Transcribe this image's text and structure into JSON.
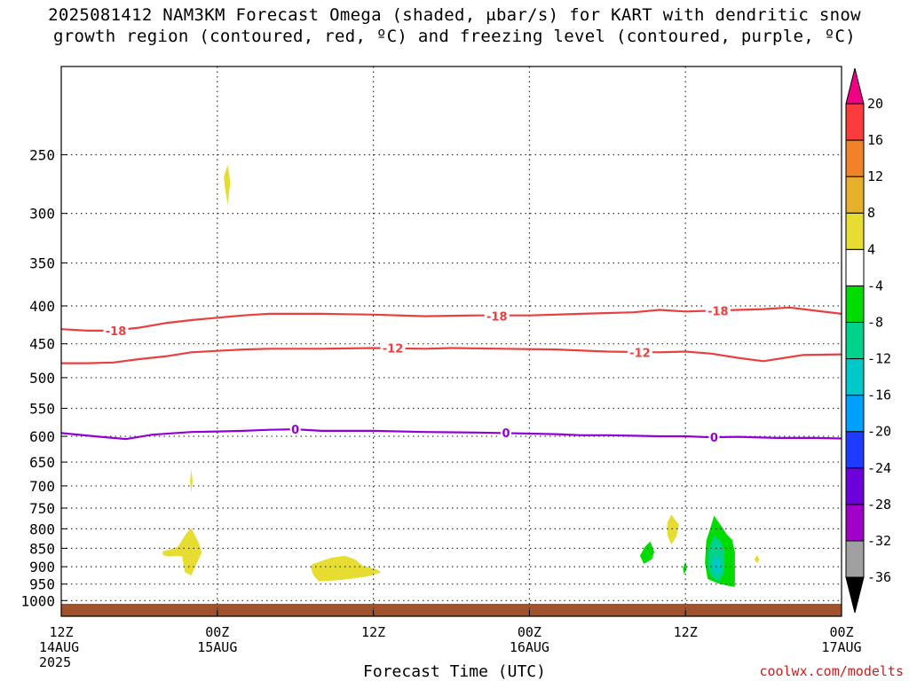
{
  "title_line1": "2025081412 NAM3KM Forecast Omega (shaded, μbar/s) for KART with dendritic snow",
  "title_line2": "growth region (contoured, red, ºC) and freezing level (contoured, purple, ºC)",
  "xlabel": "Forecast Time (UTC)",
  "credit": "coolwx.com/modelts",
  "chart_data": {
    "type": "heatmap",
    "y_scale": "log-pressure",
    "ylim": [
      1050,
      190
    ],
    "xlim": [
      0,
      60
    ],
    "grid": true,
    "y_ticks": [
      250,
      300,
      350,
      400,
      450,
      500,
      550,
      600,
      650,
      700,
      750,
      800,
      850,
      900,
      950,
      1000
    ],
    "x_ticks": [
      {
        "x": 0,
        "lines": [
          "12Z",
          "14AUG",
          "2025"
        ]
      },
      {
        "x": 12,
        "lines": [
          "00Z",
          "15AUG"
        ]
      },
      {
        "x": 24,
        "lines": [
          "12Z"
        ]
      },
      {
        "x": 36,
        "lines": [
          "00Z",
          "16AUG"
        ]
      },
      {
        "x": 48,
        "lines": [
          "12Z"
        ]
      },
      {
        "x": 60,
        "lines": [
          "00Z",
          "17AUG"
        ]
      }
    ],
    "surface": {
      "pressure": 1010,
      "color": "#a0522d"
    },
    "colorbar": {
      "levels": [
        -36,
        -32,
        -28,
        -24,
        -20,
        -16,
        -12,
        -8,
        -4,
        4,
        8,
        12,
        16,
        20
      ],
      "colors": [
        "#000000",
        "#a0a0a0",
        "#a000c8",
        "#6e00dc",
        "#1e3cff",
        "#00a0ff",
        "#00c8c8",
        "#00d28c",
        "#00dc00",
        "#ffffff",
        "#e6dc32",
        "#e6af2d",
        "#f08228",
        "#fa3c3c",
        "#f00082"
      ]
    },
    "contours": [
      {
        "name": "-18",
        "color": "#e84040",
        "points": [
          [
            0,
            430
          ],
          [
            2,
            432
          ],
          [
            4,
            432
          ],
          [
            6,
            428
          ],
          [
            8,
            422
          ],
          [
            10,
            418
          ],
          [
            12,
            415
          ],
          [
            14,
            412
          ],
          [
            16,
            410
          ],
          [
            20,
            410
          ],
          [
            24,
            411
          ],
          [
            28,
            413
          ],
          [
            32,
            412
          ],
          [
            36,
            412
          ],
          [
            40,
            410
          ],
          [
            44,
            408
          ],
          [
            46,
            405
          ],
          [
            48,
            407
          ],
          [
            50,
            406
          ],
          [
            52,
            405
          ],
          [
            54,
            404
          ],
          [
            56,
            402
          ],
          [
            58,
            406
          ],
          [
            60,
            410
          ]
        ],
        "labels": [
          [
            4.2,
            432
          ],
          [
            33.5,
            413
          ],
          [
            50.5,
            406
          ]
        ]
      },
      {
        "name": "-12",
        "color": "#e84040",
        "points": [
          [
            0,
            478
          ],
          [
            2,
            478
          ],
          [
            4,
            477
          ],
          [
            6,
            472
          ],
          [
            8,
            468
          ],
          [
            10,
            462
          ],
          [
            12,
            460
          ],
          [
            14,
            458
          ],
          [
            16,
            457
          ],
          [
            20,
            457
          ],
          [
            24,
            456
          ],
          [
            28,
            457
          ],
          [
            30,
            456
          ],
          [
            34,
            457
          ],
          [
            38,
            458
          ],
          [
            42,
            461
          ],
          [
            46,
            462
          ],
          [
            48,
            461
          ],
          [
            50,
            464
          ],
          [
            52,
            470
          ],
          [
            54,
            475
          ],
          [
            55,
            472
          ],
          [
            57,
            466
          ],
          [
            60,
            465
          ]
        ],
        "labels": [
          [
            25.5,
            456
          ],
          [
            44.5,
            462
          ]
        ]
      },
      {
        "name": "0",
        "color": "#9400d3",
        "points": [
          [
            0,
            594
          ],
          [
            3,
            601
          ],
          [
            5,
            605
          ],
          [
            7,
            597
          ],
          [
            10,
            592
          ],
          [
            12,
            591
          ],
          [
            14,
            590
          ],
          [
            16,
            588
          ],
          [
            18,
            587
          ],
          [
            20,
            590
          ],
          [
            24,
            590
          ],
          [
            28,
            592
          ],
          [
            32,
            593
          ],
          [
            36,
            595
          ],
          [
            38,
            596
          ],
          [
            40,
            598
          ],
          [
            42,
            598
          ],
          [
            44,
            599
          ],
          [
            46,
            600
          ],
          [
            48,
            600
          ],
          [
            50,
            602
          ],
          [
            52,
            601
          ],
          [
            55,
            603
          ],
          [
            58,
            603
          ],
          [
            60,
            604
          ]
        ],
        "labels": [
          [
            18,
            587
          ],
          [
            34.2,
            593
          ],
          [
            50.2,
            602
          ]
        ]
      }
    ],
    "shaded_regions": [
      {
        "value": 6,
        "points": [
          [
            12.8,
            258
          ],
          [
            13.0,
            272
          ],
          [
            12.8,
            292
          ],
          [
            12.6,
            278
          ],
          [
            12.5,
            268
          ]
        ]
      },
      {
        "value": 6,
        "points": [
          [
            10.0,
            665
          ],
          [
            10.1,
            690
          ],
          [
            10.0,
            715
          ],
          [
            9.9,
            690
          ]
        ]
      },
      {
        "value": 6,
        "points": [
          [
            10.0,
            798
          ],
          [
            10.6,
            838
          ],
          [
            10.8,
            862
          ],
          [
            10.4,
            892
          ],
          [
            10.0,
            925
          ],
          [
            9.5,
            915
          ],
          [
            9.3,
            872
          ],
          [
            8.9,
            870
          ],
          [
            8.3,
            872
          ],
          [
            7.8,
            868
          ],
          [
            7.8,
            858
          ],
          [
            8.5,
            852
          ],
          [
            9.0,
            845
          ],
          [
            9.6,
            812
          ]
        ]
      },
      {
        "value": 6,
        "points": [
          [
            19.3,
            893
          ],
          [
            20.8,
            875
          ],
          [
            21.8,
            870
          ],
          [
            22.6,
            880
          ],
          [
            23.2,
            898
          ],
          [
            24.2,
            906
          ],
          [
            24.6,
            916
          ],
          [
            23.5,
            928
          ],
          [
            21.5,
            938
          ],
          [
            19.8,
            942
          ],
          [
            19.4,
            925
          ],
          [
            19.2,
            905
          ]
        ]
      },
      {
        "value": 6,
        "points": [
          [
            46.9,
            765
          ],
          [
            47.5,
            790
          ],
          [
            47.3,
            820
          ],
          [
            46.9,
            840
          ],
          [
            46.6,
            815
          ],
          [
            46.6,
            785
          ]
        ]
      },
      {
        "value": 6,
        "points": [
          [
            53.5,
            868
          ],
          [
            53.7,
            880
          ],
          [
            53.5,
            890
          ],
          [
            53.3,
            880
          ]
        ]
      },
      {
        "value": -6,
        "points": [
          [
            45.3,
            832
          ],
          [
            45.6,
            860
          ],
          [
            45.4,
            880
          ],
          [
            44.8,
            892
          ],
          [
            44.5,
            870
          ],
          [
            44.9,
            845
          ]
        ]
      },
      {
        "value": -6,
        "points": [
          [
            48.0,
            885
          ],
          [
            48.1,
            905
          ],
          [
            47.9,
            922
          ],
          [
            47.8,
            905
          ]
        ]
      },
      {
        "value": -6,
        "points": [
          [
            50.2,
            768
          ],
          [
            50.8,
            795
          ],
          [
            51.2,
            815
          ],
          [
            51.6,
            828
          ],
          [
            51.8,
            860
          ],
          [
            51.8,
            958
          ],
          [
            51.3,
            955
          ],
          [
            50.5,
            948
          ],
          [
            49.7,
            935
          ],
          [
            49.5,
            890
          ],
          [
            49.6,
            830
          ],
          [
            49.9,
            800
          ]
        ]
      },
      {
        "value": -10,
        "points": [
          [
            50.2,
            818
          ],
          [
            50.7,
            830
          ],
          [
            51.0,
            860
          ],
          [
            51.0,
            915
          ],
          [
            50.6,
            942
          ],
          [
            50.0,
            930
          ],
          [
            49.7,
            895
          ],
          [
            49.8,
            850
          ]
        ]
      },
      {
        "value": -13,
        "points": [
          [
            50.3,
            868
          ],
          [
            50.7,
            885
          ],
          [
            50.7,
            912
          ],
          [
            50.4,
            924
          ],
          [
            50.1,
            908
          ],
          [
            50.1,
            885
          ]
        ]
      }
    ]
  }
}
